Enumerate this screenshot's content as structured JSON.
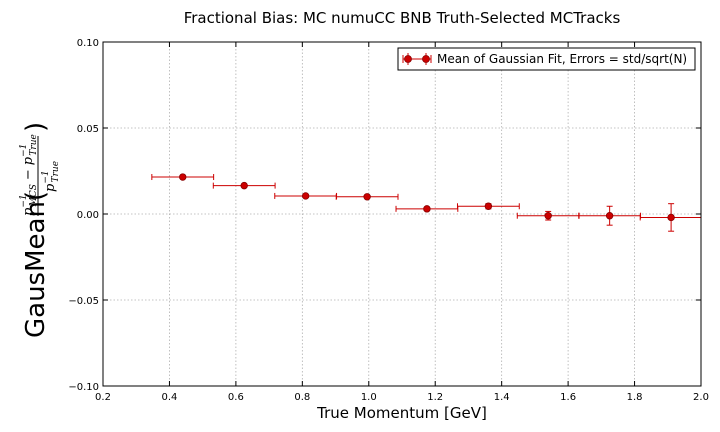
{
  "chart_data": {
    "type": "scatter",
    "title": "Fractional Bias: MC numuCC BNB Truth-Selected MCTracks",
    "xlabel": "True Momentum [GeV]",
    "ylabel": {
      "prefix": "GausMean(",
      "suffix": ")",
      "num_p1": "p",
      "num_sub1": "MCS",
      "num_sup1": "−1",
      "minus": "−",
      "num_p2": "p",
      "num_sub2": "True",
      "num_sup2": "−1",
      "den_p": "p",
      "den_sub": "True",
      "den_sup": "−1"
    },
    "xlim": [
      0.2,
      2.0
    ],
    "ylim": [
      -0.1,
      0.1
    ],
    "xticks": [
      "0.2",
      "0.4",
      "0.6",
      "0.8",
      "1.0",
      "1.2",
      "1.4",
      "1.6",
      "1.8",
      "2.0"
    ],
    "yticks": [
      "−0.10",
      "−0.05",
      "0.00",
      "0.05",
      "0.10"
    ],
    "grid": true,
    "legend_position": "top-right",
    "series": [
      {
        "name": "Mean of Gaussian Fit, Errors = std/sqrt(N)",
        "color": "#cc0000",
        "points": [
          {
            "x": 0.44,
            "y": 0.0215,
            "xerr": 0.093,
            "yerr": 0.0005
          },
          {
            "x": 0.625,
            "y": 0.0165,
            "xerr": 0.093,
            "yerr": 0.0005
          },
          {
            "x": 0.81,
            "y": 0.0105,
            "xerr": 0.093,
            "yerr": 0.0005
          },
          {
            "x": 0.995,
            "y": 0.01,
            "xerr": 0.093,
            "yerr": 0.0005
          },
          {
            "x": 1.175,
            "y": 0.003,
            "xerr": 0.093,
            "yerr": 0.001
          },
          {
            "x": 1.36,
            "y": 0.0045,
            "xerr": 0.093,
            "yerr": 0.0015
          },
          {
            "x": 1.54,
            "y": -0.001,
            "xerr": 0.093,
            "yerr": 0.0025
          },
          {
            "x": 1.725,
            "y": -0.001,
            "xerr": 0.093,
            "yerr": 0.0055
          },
          {
            "x": 1.91,
            "y": -0.002,
            "xerr": 0.093,
            "yerr": 0.008
          }
        ]
      }
    ]
  }
}
